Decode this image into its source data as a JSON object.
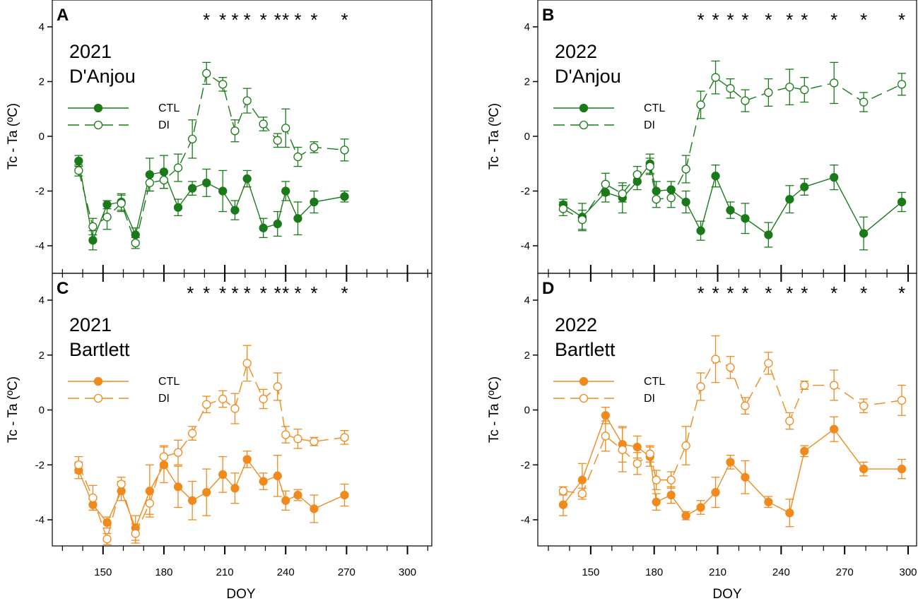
{
  "figure": {
    "y_axis_label": "Tc - Ta (ºC)",
    "x_axis_label": "DOY",
    "y_ticks": [
      "4",
      "2",
      "0",
      "-2",
      "-4"
    ],
    "x_ticks": [
      "150",
      "180",
      "210",
      "240",
      "270",
      "300"
    ],
    "legend": {
      "ctl": "CTL",
      "di": "DI"
    },
    "colors": {
      "green": "#1a7a1a",
      "orange": "#f08a1c"
    }
  },
  "chart_data": [
    {
      "type": "line",
      "panel": "A",
      "year": "2021",
      "cultivar": "D'Anjou",
      "color": "#1a7a1a",
      "xlabel": "",
      "ylabel": "Tc - Ta (ºC)",
      "xlim": [
        125,
        312
      ],
      "ylim": [
        -5,
        5
      ],
      "star_doys": [
        201,
        209,
        215,
        221,
        229,
        236,
        240,
        246,
        254,
        269
      ],
      "series": [
        {
          "name": "CTL",
          "marker": "filled",
          "x": [
            138,
            145,
            152,
            159,
            166,
            173,
            180,
            187,
            194,
            201,
            209,
            215,
            221,
            229,
            236,
            240,
            246,
            254,
            269
          ],
          "y": [
            -0.9,
            -3.8,
            -2.5,
            -2.4,
            -3.6,
            -1.4,
            -1.3,
            -2.6,
            -1.9,
            -1.7,
            -2.0,
            -2.7,
            -1.55,
            -3.35,
            -3.2,
            -2.0,
            -3.0,
            -2.4,
            -2.2
          ],
          "err": [
            0.2,
            0.35,
            0.15,
            0.3,
            0.25,
            0.6,
            0.6,
            0.3,
            0.25,
            0.5,
            0.75,
            0.35,
            0.3,
            0.35,
            0.45,
            0.35,
            0.6,
            0.4,
            0.2
          ]
        },
        {
          "name": "DI",
          "marker": "open",
          "x": [
            138,
            145,
            152,
            159,
            166,
            173,
            180,
            187,
            194,
            201,
            209,
            215,
            221,
            229,
            236,
            240,
            246,
            254,
            269
          ],
          "y": [
            -1.25,
            -3.3,
            -2.95,
            -2.45,
            -3.9,
            -1.7,
            -1.6,
            -1.15,
            -0.1,
            2.3,
            1.9,
            0.2,
            1.3,
            0.45,
            -0.15,
            0.3,
            -0.75,
            -0.4,
            -0.5
          ],
          "err": [
            0.2,
            0.3,
            0.45,
            0.3,
            0.2,
            0.3,
            0.3,
            0.5,
            0.7,
            0.4,
            0.25,
            0.4,
            0.45,
            0.25,
            0.25,
            0.7,
            0.35,
            0.2,
            0.4
          ]
        }
      ]
    },
    {
      "type": "line",
      "panel": "B",
      "year": "2022",
      "cultivar": "D'Anjou",
      "color": "#1a7a1a",
      "xlabel": "",
      "ylabel": "Tc - Ta (ºC)",
      "xlim": [
        125,
        304
      ],
      "ylim": [
        -5,
        5
      ],
      "star_doys": [
        202,
        209,
        216,
        223,
        234,
        244,
        251,
        265,
        279,
        297
      ],
      "series": [
        {
          "name": "CTL",
          "marker": "filled",
          "x": [
            137,
            146,
            157,
            165,
            172,
            178,
            181,
            188,
            195,
            202,
            209,
            216,
            223,
            234,
            244,
            251,
            265,
            279,
            297
          ],
          "y": [
            -2.5,
            -2.95,
            -2.05,
            -2.25,
            -1.65,
            -1.0,
            -2.0,
            -1.95,
            -2.4,
            -3.45,
            -1.45,
            -2.7,
            -3.0,
            -3.6,
            -2.3,
            -1.85,
            -1.5,
            -3.55,
            -2.4
          ],
          "err": [
            0.2,
            0.5,
            0.35,
            0.55,
            0.3,
            0.35,
            0.35,
            0.3,
            0.4,
            0.35,
            0.4,
            0.3,
            0.55,
            0.45,
            0.5,
            0.3,
            0.45,
            0.6,
            0.35
          ]
        },
        {
          "name": "DI",
          "marker": "open",
          "x": [
            137,
            146,
            157,
            165,
            172,
            178,
            181,
            188,
            195,
            202,
            209,
            216,
            223,
            234,
            244,
            251,
            265,
            279,
            297
          ],
          "y": [
            -2.65,
            -3.05,
            -1.75,
            -2.1,
            -1.4,
            -1.1,
            -2.3,
            -2.25,
            -1.2,
            1.15,
            2.15,
            1.75,
            1.3,
            1.6,
            1.8,
            1.7,
            1.95,
            1.25,
            1.9
          ],
          "err": [
            0.25,
            0.35,
            0.4,
            0.3,
            0.3,
            0.3,
            0.3,
            0.35,
            0.5,
            0.5,
            0.6,
            0.35,
            0.4,
            0.5,
            0.65,
            0.45,
            0.75,
            0.35,
            0.4
          ]
        }
      ]
    },
    {
      "type": "line",
      "panel": "C",
      "year": "2021",
      "cultivar": "Bartlett",
      "color": "#f08a1c",
      "xlabel": "",
      "ylabel": "Tc - Ta (ºC)",
      "xlim": [
        125,
        312
      ],
      "ylim": [
        -5,
        5
      ],
      "star_doys": [
        193,
        201,
        209,
        215,
        221,
        229,
        236,
        240,
        246,
        254,
        269
      ],
      "series": [
        {
          "name": "CTL",
          "marker": "filled",
          "x": [
            138,
            145,
            152,
            159,
            166,
            173,
            180,
            187,
            194,
            201,
            209,
            215,
            221,
            229,
            236,
            240,
            246,
            254,
            269
          ],
          "y": [
            -2.2,
            -3.45,
            -4.1,
            -2.95,
            -4.3,
            -2.95,
            -2.0,
            -2.8,
            -3.3,
            -3.0,
            -2.35,
            -2.85,
            -1.8,
            -2.6,
            -2.4,
            -3.3,
            -3.1,
            -3.6,
            -3.1
          ],
          "err": [
            0.3,
            0.2,
            0.2,
            0.35,
            0.45,
            0.95,
            0.65,
            0.75,
            0.7,
            0.85,
            0.65,
            0.55,
            0.3,
            0.3,
            0.75,
            0.35,
            0.2,
            0.5,
            0.4
          ]
        },
        {
          "name": "DI",
          "marker": "open",
          "x": [
            138,
            145,
            152,
            159,
            166,
            173,
            180,
            187,
            194,
            201,
            209,
            215,
            221,
            229,
            236,
            240,
            246,
            254,
            269
          ],
          "y": [
            -2.0,
            -3.2,
            -4.7,
            -2.7,
            -4.5,
            -3.4,
            -1.7,
            -1.55,
            -0.85,
            0.2,
            0.4,
            0.05,
            1.7,
            0.4,
            0.85,
            -0.9,
            -1.05,
            -1.15,
            -1.0
          ],
          "err": [
            0.3,
            0.45,
            0.2,
            0.25,
            0.35,
            0.4,
            0.4,
            0.45,
            0.25,
            0.3,
            0.3,
            0.55,
            0.65,
            0.35,
            0.5,
            0.3,
            0.35,
            0.15,
            0.25
          ]
        }
      ]
    },
    {
      "type": "line",
      "panel": "D",
      "year": "2022",
      "cultivar": "Bartlett",
      "color": "#f08a1c",
      "xlabel": "DOY",
      "ylabel": "Tc - Ta (ºC)",
      "xlim": [
        125,
        304
      ],
      "ylim": [
        -5,
        5
      ],
      "star_doys": [
        202,
        209,
        216,
        223,
        234,
        244,
        251,
        265,
        279,
        297
      ],
      "series": [
        {
          "name": "CTL",
          "marker": "filled",
          "x": [
            137,
            146,
            157,
            165,
            172,
            178,
            181,
            188,
            195,
            202,
            209,
            216,
            223,
            234,
            244,
            251,
            265,
            279,
            297
          ],
          "y": [
            -3.45,
            -2.55,
            -0.2,
            -1.25,
            -1.35,
            -1.7,
            -3.35,
            -3.1,
            -3.85,
            -3.55,
            -3.0,
            -1.9,
            -2.45,
            -3.35,
            -3.75,
            -1.5,
            -0.7,
            -2.15,
            -2.15
          ],
          "err": [
            0.4,
            0.6,
            0.3,
            0.65,
            0.4,
            0.35,
            0.3,
            0.3,
            0.15,
            0.25,
            0.55,
            0.25,
            0.6,
            0.2,
            0.5,
            0.2,
            0.45,
            0.25,
            0.35
          ]
        },
        {
          "name": "DI",
          "marker": "open",
          "x": [
            137,
            146,
            157,
            165,
            172,
            178,
            181,
            188,
            195,
            202,
            209,
            216,
            223,
            234,
            244,
            251,
            265,
            279,
            297
          ],
          "y": [
            -2.95,
            -3.05,
            -0.95,
            -1.45,
            -1.95,
            -1.6,
            -2.55,
            -2.55,
            -1.3,
            0.85,
            1.85,
            1.55,
            0.15,
            1.7,
            -0.4,
            0.9,
            0.9,
            0.15,
            0.35
          ],
          "err": [
            0.15,
            0.2,
            0.55,
            0.8,
            0.4,
            0.3,
            0.35,
            0.3,
            0.7,
            0.5,
            0.85,
            0.4,
            0.3,
            0.4,
            0.3,
            0.15,
            0.55,
            0.25,
            0.55
          ]
        }
      ]
    }
  ]
}
